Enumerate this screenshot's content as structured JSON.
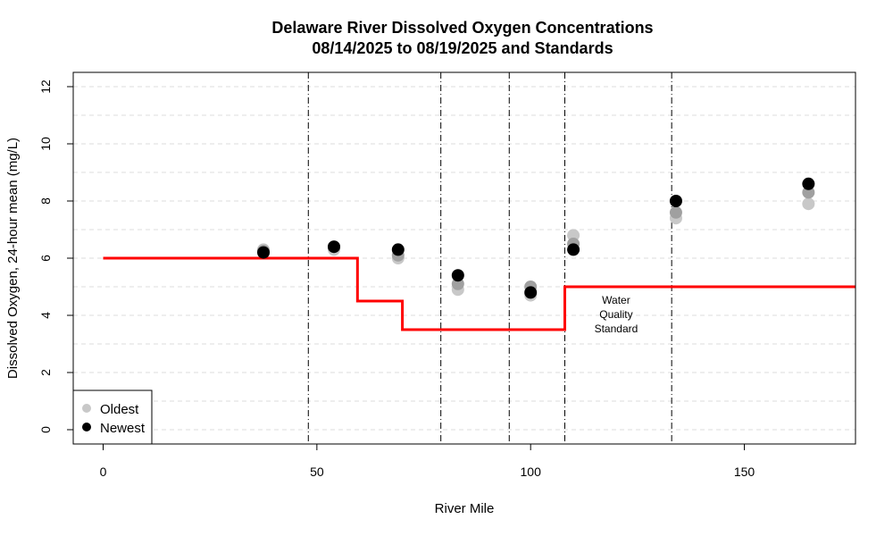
{
  "chart_data": {
    "type": "scatter",
    "title": "Delaware River Dissolved Oxygen Concentrations",
    "subtitle": "08/14/2025 to 08/19/2025 and Standards",
    "xlabel": "River Mile",
    "ylabel": "Dissolved Oxygen, 24-hour mean (mg/L)",
    "xlim": [
      -7,
      176
    ],
    "ylim": [
      -0.5,
      12.5
    ],
    "xticks": [
      0,
      50,
      100,
      150
    ],
    "yticks": [
      0,
      2,
      4,
      6,
      8,
      10,
      12
    ],
    "grid": "horizontal dashed",
    "vlines": [
      48,
      79,
      95,
      108,
      133
    ],
    "colors": {
      "oldest": "#c8c8c8",
      "mid": "#a0a0a0",
      "newest": "#000000",
      "standard": "#ff0000"
    },
    "standard": {
      "name": "Water Quality Standard",
      "label_lines": [
        "Water",
        "Quality",
        "Standard"
      ],
      "label_position": [
        120,
        4.4
      ],
      "x": [
        0,
        59.5,
        59.5,
        70,
        70,
        108,
        108,
        176
      ],
      "y": [
        6.0,
        6.0,
        4.5,
        4.5,
        3.5,
        3.5,
        5.0,
        5.0
      ]
    },
    "series": [
      {
        "name": "Oldest",
        "color": "#c8c8c8",
        "points": [
          [
            37.5,
            6.3
          ],
          [
            54,
            6.3
          ],
          [
            69,
            6.0
          ],
          [
            83,
            4.9
          ],
          [
            100,
            4.7
          ],
          [
            110,
            6.8
          ],
          [
            134,
            7.4
          ],
          [
            165,
            7.9
          ]
        ]
      },
      {
        "color": "#a0a0a0",
        "points": [
          [
            37.5,
            6.25
          ],
          [
            54,
            6.4
          ],
          [
            69,
            6.1
          ],
          [
            83,
            5.1
          ],
          [
            100,
            5.0
          ],
          [
            110,
            6.5
          ],
          [
            134,
            7.6
          ],
          [
            165,
            8.3
          ]
        ]
      },
      {
        "name": "Newest",
        "color": "#000000",
        "points": [
          [
            37.5,
            6.2
          ],
          [
            54,
            6.4
          ],
          [
            69,
            6.3
          ],
          [
            83,
            5.4
          ],
          [
            100,
            4.8
          ],
          [
            110,
            6.3
          ],
          [
            134,
            8.0
          ],
          [
            165,
            8.6
          ]
        ]
      }
    ],
    "legend": {
      "position": "bottom-left",
      "entries": [
        {
          "label": "Oldest",
          "color": "#c8c8c8"
        },
        {
          "label": "Newest",
          "color": "#000000"
        }
      ]
    }
  }
}
